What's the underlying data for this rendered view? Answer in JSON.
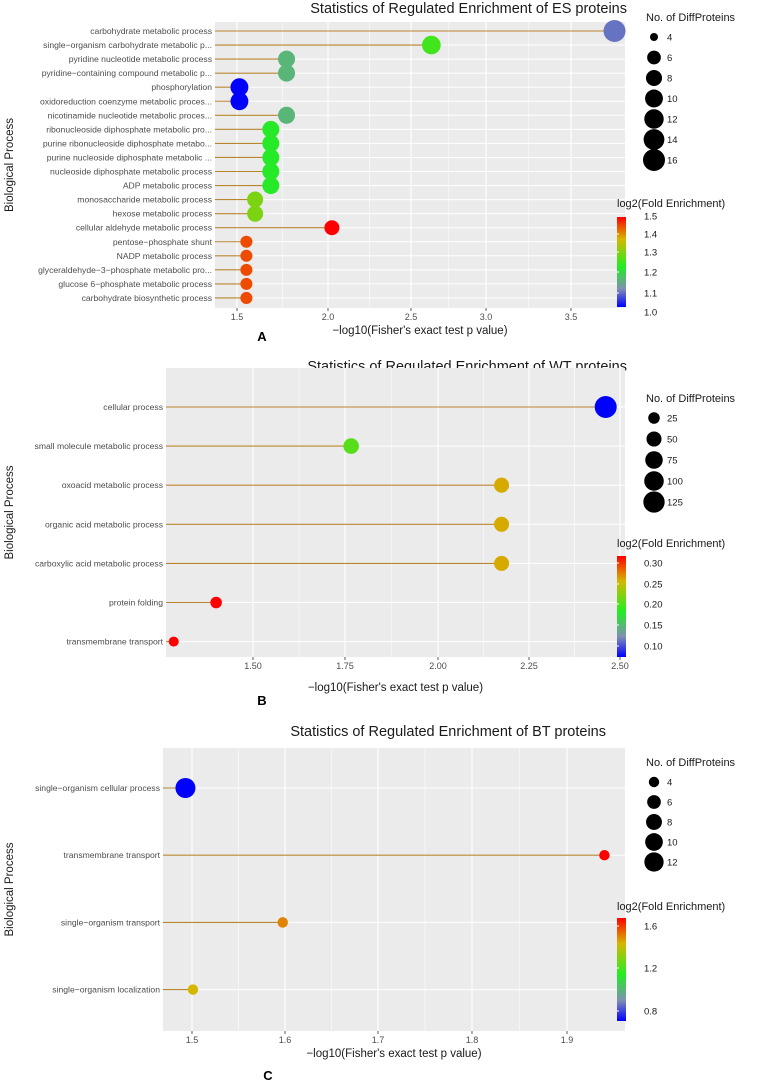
{
  "chart_data": [
    {
      "type": "scatter",
      "panel_label": "A",
      "title": "Statistics of Regulated Enrichment of ES proteins",
      "xlabel": "−log10(Fisher's exact test p value)",
      "ylabel": "Biological Process",
      "xlim": [
        1.4,
        3.75
      ],
      "xticks": [
        "1.5",
        "2.0",
        "2.5",
        "3.0",
        "3.5"
      ],
      "size_legend_title": "No. of DiffProteins",
      "size_legend": [
        4,
        6,
        8,
        10,
        12,
        14,
        16
      ],
      "size_range": [
        4,
        16
      ],
      "color_legend_title": "log2(Fold Enrichment)",
      "color_ticks": [
        "1.5",
        "1.4",
        "1.3",
        "1.2",
        "1.1",
        "1.0"
      ],
      "color_range": [
        1.0,
        1.5
      ],
      "categories": [
        "carbohydrate metabolic process",
        "single−organism carbohydrate metabolic p...",
        "pyridine nucleotide metabolic process",
        "pyridine−containing compound metabolic p...",
        "phosphorylation",
        "oxidoreduction coenzyme metabolic proces...",
        "nicotinamide nucleotide metabolic proces...",
        "ribonucleoside diphosphate metabolic pro...",
        "purine ribonucleoside diphosphate metabo...",
        "purine nucleoside diphosphate metabolic ...",
        "nucleoside diphosphate metabolic process",
        "ADP metabolic process",
        "monosaccharide metabolic process",
        "hexose metabolic process",
        "cellular aldehyde metabolic process",
        "pentose−phosphate shunt",
        "NADP metabolic process",
        "glyceraldehyde−3−phosphate metabolic pro...",
        "glucose 6−phosphate metabolic process",
        "carbohydrate biosynthetic process"
      ],
      "x": [
        3.69,
        2.64,
        1.81,
        1.81,
        1.54,
        1.54,
        1.81,
        1.72,
        1.72,
        1.72,
        1.72,
        1.72,
        1.63,
        1.63,
        2.07,
        1.58,
        1.58,
        1.58,
        1.58,
        1.58
      ],
      "size": [
        16,
        11,
        9,
        9,
        10,
        10,
        9,
        9,
        9,
        9,
        9,
        9,
        8,
        8,
        7,
        5,
        5,
        5,
        5,
        5
      ],
      "color": [
        1.08,
        1.25,
        1.15,
        1.15,
        1.0,
        1.0,
        1.15,
        1.22,
        1.22,
        1.22,
        1.22,
        1.22,
        1.3,
        1.3,
        1.5,
        1.45,
        1.45,
        1.45,
        1.45,
        1.45
      ]
    },
    {
      "type": "scatter",
      "panel_label": "B",
      "title": "Statistics of Regulated Enrichment  of WT proteins",
      "xlabel": "−log10(Fisher's exact test p value)",
      "ylabel": "Biological Process",
      "xlim": [
        1.31,
        2.5
      ],
      "xticks": [
        "1.50",
        "1.75",
        "2.00",
        "2.25",
        "2.50"
      ],
      "size_legend_title": "No. of DiffProteins",
      "size_legend": [
        25,
        50,
        75,
        100,
        125
      ],
      "size_range": [
        10,
        135
      ],
      "color_legend_title": "log2(Fold Enrichment)",
      "color_ticks": [
        "0.30",
        "0.25",
        "0.20",
        "0.15",
        "0.10"
      ],
      "color_range": [
        0.07,
        0.33
      ],
      "categories": [
        "cellular process",
        "small molecule metabolic process",
        "oxoacid metabolic process",
        "organic acid metabolic process",
        "carboxylic acid metabolic process",
        "protein folding",
        "transmembrane transport"
      ],
      "x": [
        2.45,
        1.79,
        2.18,
        2.18,
        2.18,
        1.44,
        1.33
      ],
      "size": [
        135,
        55,
        50,
        50,
        50,
        25,
        18
      ],
      "color": [
        0.07,
        0.21,
        0.27,
        0.27,
        0.27,
        0.33,
        0.33
      ]
    },
    {
      "type": "scatter",
      "panel_label": "C",
      "title": "Statistics of Regulated Enrichment of BT proteins",
      "xlabel": "−log10(Fisher's exact test p value)",
      "ylabel": "Biological Process",
      "xlim": [
        1.468,
        1.962
      ],
      "xticks": [
        "1.5",
        "1.6",
        "1.7",
        "1.8",
        "1.9"
      ],
      "size_legend_title": "No. of DiffProteins",
      "size_legend": [
        4,
        6,
        8,
        10,
        12
      ],
      "size_range": [
        3,
        13
      ],
      "color_legend_title": "log2(Fold Enrichment)",
      "color_ticks": [
        "1.6",
        "1.2",
        "0.8"
      ],
      "color_range": [
        0.5,
        1.9
      ],
      "categories": [
        "single−organism cellular process",
        "transmembrane transport",
        "single−organism transport",
        "single−organism localization"
      ],
      "x": [
        1.492,
        1.94,
        1.596,
        1.5
      ],
      "size": [
        13,
        4,
        4,
        4
      ],
      "color": [
        0.5,
        1.9,
        1.65,
        1.55
      ]
    }
  ],
  "colors": {
    "panel_background": "#ebebeb",
    "grid": "#ffffff",
    "stem": "#b8862e",
    "legend_dot": "#000000"
  }
}
